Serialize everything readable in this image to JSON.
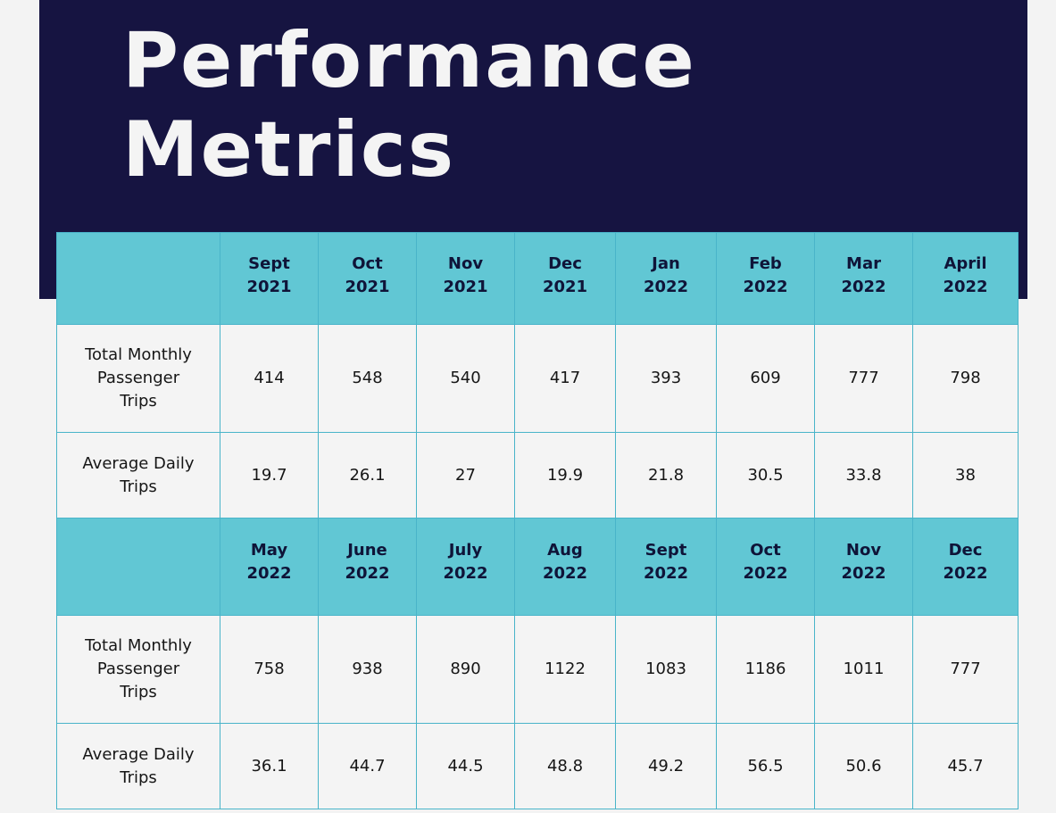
{
  "title": {
    "line1": "Performance",
    "line2": "Metrics"
  },
  "colors": {
    "hero_background": "#161441",
    "header_cell": "#61c7d4",
    "border": "#49b4c9",
    "data_cell": "#f4f4f4",
    "page_background": "#f3f3f3"
  },
  "tables": [
    {
      "months": [
        {
          "month": "Sept",
          "year": "2021"
        },
        {
          "month": "Oct",
          "year": "2021"
        },
        {
          "month": "Nov",
          "year": "2021"
        },
        {
          "month": "Dec",
          "year": "2021"
        },
        {
          "month": "Jan",
          "year": "2022"
        },
        {
          "month": "Feb",
          "year": "2022"
        },
        {
          "month": "Mar",
          "year": "2022"
        },
        {
          "month": "April",
          "year": "2022"
        }
      ],
      "rows": [
        {
          "label_lines": [
            "Total Monthly",
            "Passenger",
            "Trips"
          ],
          "values": [
            "414",
            "548",
            "540",
            "417",
            "393",
            "609",
            "777",
            "798"
          ]
        },
        {
          "label_lines": [
            "Average Daily",
            "Trips"
          ],
          "values": [
            "19.7",
            "26.1",
            "27",
            "19.9",
            "21.8",
            "30.5",
            "33.8",
            "38"
          ]
        }
      ]
    },
    {
      "months": [
        {
          "month": "May",
          "year": "2022"
        },
        {
          "month": "June",
          "year": "2022"
        },
        {
          "month": "July",
          "year": "2022"
        },
        {
          "month": "Aug",
          "year": "2022"
        },
        {
          "month": "Sept",
          "year": "2022"
        },
        {
          "month": "Oct",
          "year": "2022"
        },
        {
          "month": "Nov",
          "year": "2022"
        },
        {
          "month": "Dec",
          "year": "2022"
        }
      ],
      "rows": [
        {
          "label_lines": [
            "Total Monthly",
            "Passenger",
            "Trips"
          ],
          "values": [
            "758",
            "938",
            "890",
            "1122",
            "1083",
            "1186",
            "1011",
            "777"
          ]
        },
        {
          "label_lines": [
            "Average Daily",
            "Trips"
          ],
          "values": [
            "36.1",
            "44.7",
            "44.5",
            "48.8",
            "49.2",
            "56.5",
            "50.6",
            "45.7"
          ]
        }
      ]
    }
  ]
}
